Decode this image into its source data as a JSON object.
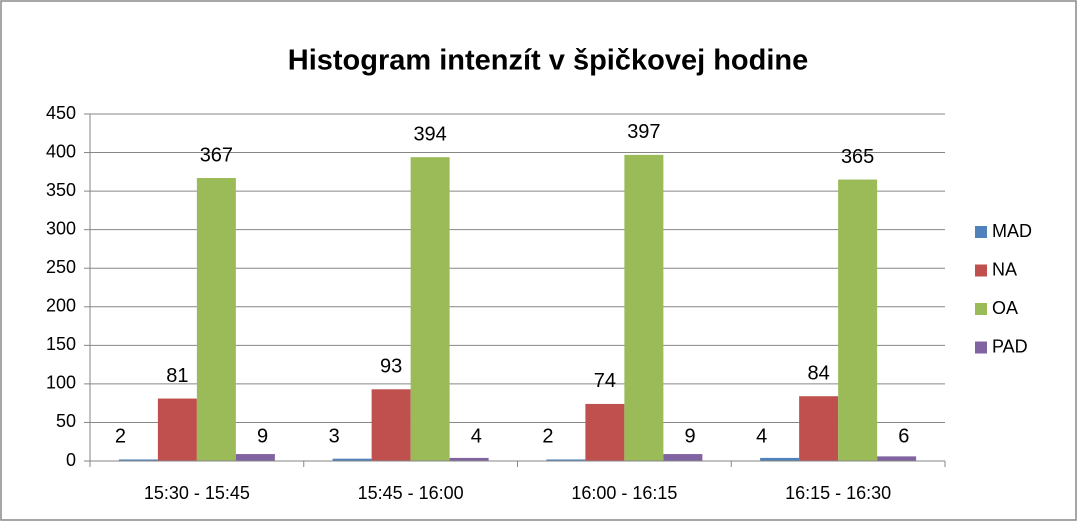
{
  "chart_data": {
    "type": "bar",
    "title": "Histogram intenzít v špičkovej hodine",
    "categories": [
      "15:30 - 15:45",
      "15:45 - 16:00",
      "16:00 - 16:15",
      "16:15 - 16:30"
    ],
    "series": [
      {
        "name": "MAD",
        "color": "#4f81bd",
        "values": [
          2,
          3,
          2,
          4
        ]
      },
      {
        "name": "NA",
        "color": "#c0504d",
        "values": [
          81,
          93,
          74,
          84
        ]
      },
      {
        "name": "OA",
        "color": "#9bbb59",
        "values": [
          367,
          394,
          397,
          365
        ]
      },
      {
        "name": "PAD",
        "color": "#8064a2",
        "values": [
          9,
          4,
          9,
          6
        ]
      }
    ],
    "ylim": [
      0,
      450
    ],
    "yticks": [
      0,
      50,
      100,
      150,
      200,
      250,
      300,
      350,
      400,
      450
    ],
    "grid": true,
    "legend": "right"
  }
}
